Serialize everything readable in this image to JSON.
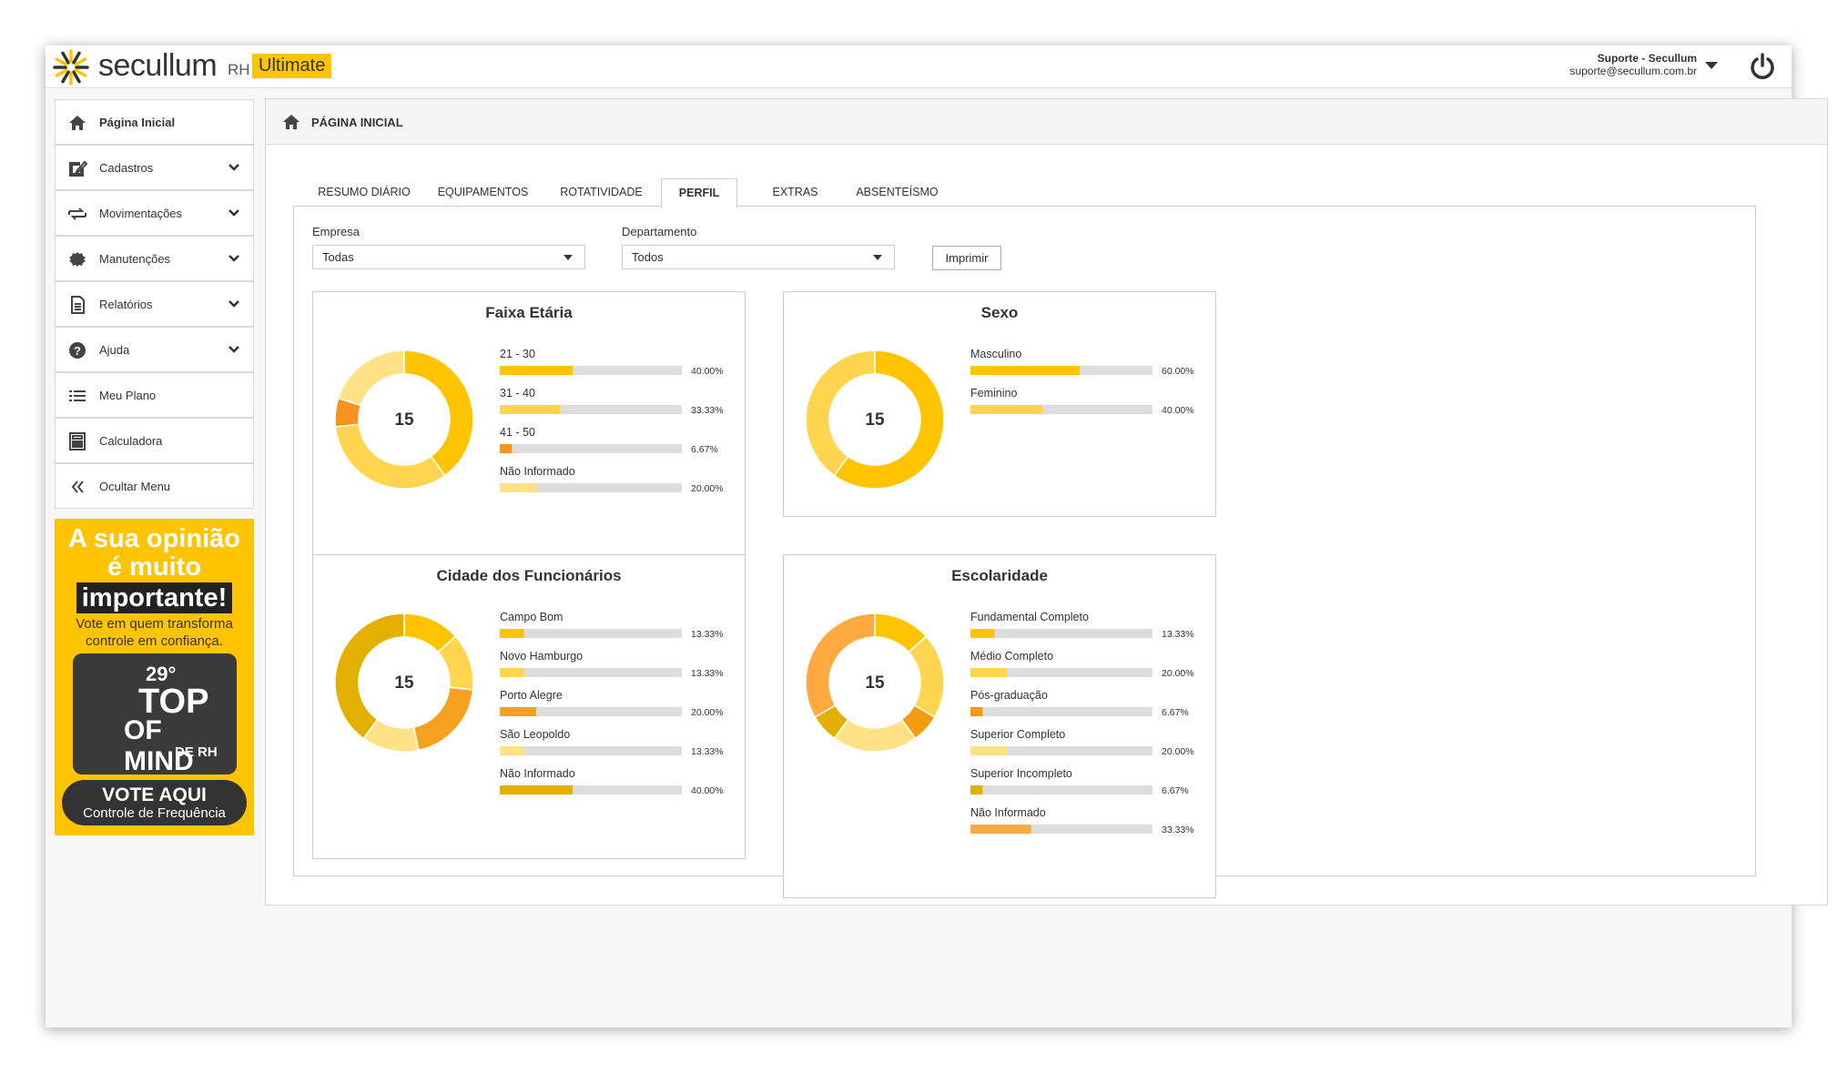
{
  "header": {
    "brand": "secullum",
    "product": "RH",
    "edition": "Ultimate",
    "user_name": "Suporte - Secullum",
    "user_email": "suporte@secullum.com.br"
  },
  "sidebar": {
    "items": [
      {
        "label": "Página Inicial",
        "submenu": false,
        "active": true
      },
      {
        "label": "Cadastros",
        "submenu": true,
        "active": false
      },
      {
        "label": "Movimentações",
        "submenu": true,
        "active": false
      },
      {
        "label": "Manutenções",
        "submenu": true,
        "active": false
      },
      {
        "label": "Relatórios",
        "submenu": true,
        "active": false
      },
      {
        "label": "Ajuda",
        "submenu": true,
        "active": false
      },
      {
        "label": "Meu Plano",
        "submenu": false,
        "active": false
      },
      {
        "label": "Calculadora",
        "submenu": false,
        "active": false
      },
      {
        "label": "Ocultar Menu",
        "submenu": false,
        "active": false
      }
    ],
    "banner": {
      "headline": [
        "A sua opinião",
        "é muito"
      ],
      "highlight": "importante!",
      "text": "Vote em quem transforma controle em confiança.",
      "badge": [
        "29°",
        "TOP",
        "OF MIND",
        "DE RH"
      ],
      "button": "VOTE AQUI",
      "button_sub": "Controle de Frequência"
    }
  },
  "page_title": "PÁGINA INICIAL",
  "tabs": [
    "RESUMO DIÁRIO",
    "EQUIPAMENTOS",
    "ROTATIVIDADE",
    "PERFIL",
    "EXTRAS",
    "ABSENTEÍSMO"
  ],
  "active_tab": 3,
  "filters": [
    {
      "label": "Empresa",
      "value": "Todas"
    },
    {
      "label": "Departamento",
      "value": "Todos"
    }
  ],
  "print_button": "Imprimir",
  "chart_data": [
    {
      "type": "donut",
      "title": "Faixa Etária",
      "total": 15,
      "categories": [
        "21 - 30",
        "31 - 40",
        "41 - 50",
        "Não Informado"
      ],
      "values": [
        40,
        33.33,
        6.67,
        20
      ],
      "value_labels": [
        "40.00%",
        "33.33%",
        "6.67%",
        "20.00%"
      ],
      "colors": [
        "#ffc400",
        "#ffd54f",
        "#f7931e",
        "#ffe285"
      ]
    },
    {
      "type": "donut",
      "title": "Sexo",
      "total": 15,
      "categories": [
        "Masculino",
        "Feminino"
      ],
      "values": [
        60,
        40
      ],
      "value_labels": [
        "60.00%",
        "40.00%"
      ],
      "colors": [
        "#ffc400",
        "#ffd54f"
      ]
    },
    {
      "type": "donut",
      "title": "Cidade dos Funcionários",
      "total": 15,
      "categories": [
        "Campo Bom",
        "Novo Hamburgo",
        "Porto Alegre",
        "São Leopoldo",
        "Não Informado"
      ],
      "values": [
        13.33,
        13.33,
        20,
        13.33,
        40
      ],
      "value_labels": [
        "13.33%",
        "13.33%",
        "20.00%",
        "13.33%",
        "40.00%"
      ],
      "colors": [
        "#ffc400",
        "#ffd54f",
        "#f7a21e",
        "#ffe285",
        "#e3b000"
      ]
    },
    {
      "type": "donut",
      "title": "Escolaridade",
      "total": 15,
      "categories": [
        "Fundamental Completo",
        "Médio Completo",
        "Pós-graduação",
        "Superior Completo",
        "Superior Incompleto",
        "Não Informado"
      ],
      "values": [
        13.33,
        20,
        6.67,
        20,
        6.67,
        33.33
      ],
      "value_labels": [
        "13.33%",
        "20.00%",
        "6.67%",
        "20.00%",
        "6.67%",
        "33.33%"
      ],
      "colors": [
        "#ffc400",
        "#ffd54f",
        "#f39c12",
        "#ffe285",
        "#e3b000",
        "#ffa940"
      ]
    }
  ]
}
